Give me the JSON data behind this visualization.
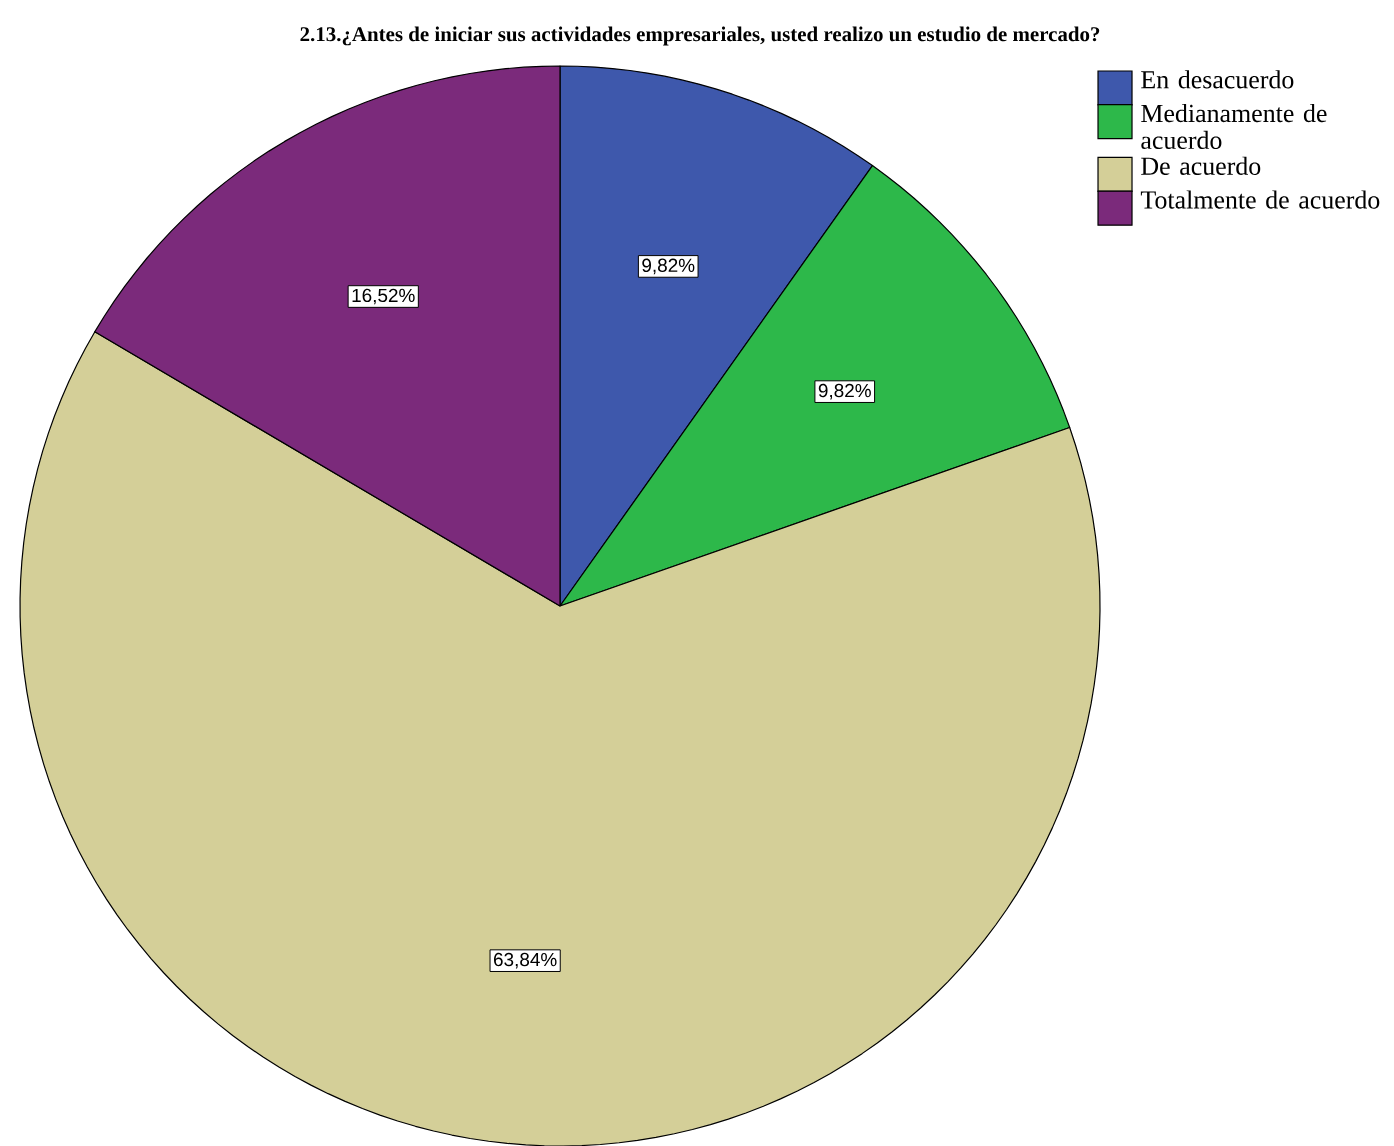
{
  "chart_data": {
    "type": "pie",
    "title": "2.13.¿Antes de iniciar sus actividades empresariales, usted realizo un estudio de mercado?",
    "categories": [
      "En desacuerdo",
      "Medianamente de acuerdo",
      "De acuerdo",
      "Totalmente de acuerdo"
    ],
    "values": [
      9.82,
      9.82,
      63.84,
      16.52
    ],
    "value_labels": [
      "9,82%",
      "9,82%",
      "63,84%",
      "16,52%"
    ],
    "colors": [
      "#3e58ac",
      "#2db84a",
      "#d4cf98",
      "#7b2a7b"
    ],
    "legend": "top right"
  }
}
